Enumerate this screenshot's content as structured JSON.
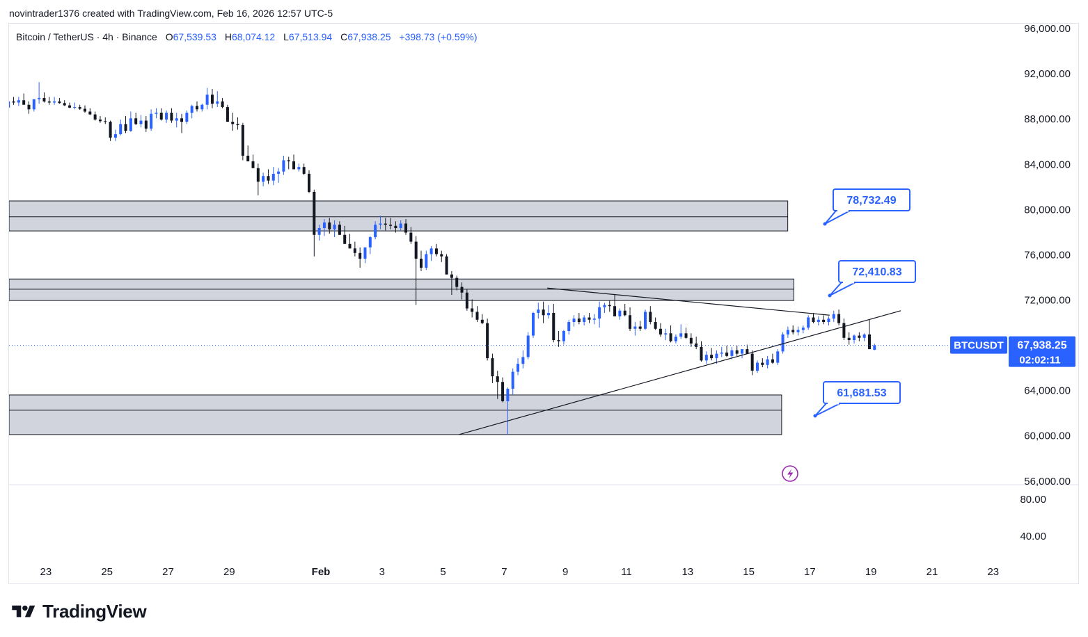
{
  "credit": "novintrader1376 created with TradingView.com, Feb 16, 2026 12:57 UTC-5",
  "legend": {
    "symbol": "Bitcoin / TetherUS · 4h · Binance",
    "open_label": "O",
    "open": "67,539.53",
    "high_label": "H",
    "high": "68,074.12",
    "low_label": "L",
    "low": "67,513.94",
    "close_label": "C",
    "close": "67,938.25",
    "change": "+398.73 (+0.59%)"
  },
  "colors": {
    "up": "#2962ff",
    "down": "#131722",
    "accent": "#2962ff",
    "zone": "#d1d4dc"
  },
  "brand": {
    "name": "TradingView",
    "icon": "tradingview-logo-icon"
  },
  "chart_data": {
    "type": "candlestick",
    "ylim": [
      56000,
      96000
    ],
    "price_ticks": [
      "96,000.00",
      "92,000.00",
      "88,000.00",
      "84,000.00",
      "80,000.00",
      "76,000.00",
      "72,000.00",
      "68,000.00",
      "64,000.00",
      "60,000.00",
      "56,000.00"
    ],
    "price_tick_values": [
      96000,
      92000,
      88000,
      84000,
      80000,
      76000,
      72000,
      68000,
      64000,
      60000,
      56000
    ],
    "x_ticks": [
      "23",
      "25",
      "27",
      "29",
      "Feb",
      "3",
      "5",
      "7",
      "9",
      "11",
      "13",
      "15",
      "17",
      "19",
      "21",
      "23"
    ],
    "x_tick_days": [
      -9,
      -7,
      -5,
      -3,
      0,
      2,
      4,
      6,
      8,
      10,
      12,
      14,
      16,
      18,
      20,
      22
    ],
    "indicator": {
      "ticks": [
        "80.00",
        "40.00"
      ],
      "tick_values": [
        80,
        40
      ],
      "ylim": [
        20,
        105
      ]
    },
    "current": {
      "symbol": "BTCUSDT",
      "price": "67,938.25",
      "countdown": "02:02:11",
      "value": 67938.25
    },
    "zones": [
      {
        "top": 80700,
        "mid": 79300,
        "bottom": 78050,
        "x_start": -10.7,
        "x_end": 15.3
      },
      {
        "top": 73800,
        "mid": 72900,
        "bottom": 71900,
        "x_start": -10.7,
        "x_end": 15.5
      },
      {
        "top": 63550,
        "mid": 62200,
        "bottom": 60050,
        "x_start": -10.7,
        "x_end": 15.1
      }
    ],
    "labels": [
      {
        "text": "78,732.49",
        "value": 78732.49
      },
      {
        "text": "72,410.83",
        "value": 72410.83
      },
      {
        "text": "61,681.53",
        "value": 61681.53
      }
    ],
    "trendlines": [
      {
        "x1": 7.43,
        "y1": 73000,
        "x2": 16.67,
        "y2": 70600
      },
      {
        "x1": 4.54,
        "y1": 60050,
        "x2": 19.0,
        "y2": 71000
      }
    ],
    "candles_t0": -10.7,
    "candles_step": 0.1667,
    "candles": [
      [
        89600,
        90150,
        89150,
        89700
      ],
      [
        89700,
        89950,
        89300,
        89450
      ],
      [
        89450,
        89800,
        88400,
        88950
      ],
      [
        88950,
        89800,
        88700,
        89500
      ],
      [
        89500,
        89900,
        89200,
        89400
      ],
      [
        89400,
        89900,
        89100,
        89600
      ],
      [
        89600,
        90200,
        89300,
        89200
      ],
      [
        89200,
        89500,
        88400,
        88800
      ],
      [
        88800,
        89650,
        88600,
        89700
      ],
      [
        89700,
        91200,
        89300,
        89800
      ],
      [
        89800,
        90300,
        89400,
        89500
      ],
      [
        89500,
        89900,
        89200,
        89400
      ],
      [
        89400,
        89900,
        89200,
        89500
      ],
      [
        89500,
        89800,
        89300,
        89350
      ],
      [
        89350,
        89600,
        89100,
        89150
      ],
      [
        89150,
        89400,
        88900,
        88950
      ],
      [
        88950,
        89400,
        88800,
        89000
      ],
      [
        89000,
        89200,
        88750,
        88850
      ],
      [
        88850,
        89150,
        88500,
        88600
      ],
      [
        88600,
        88900,
        88300,
        88350
      ],
      [
        88350,
        88600,
        87800,
        87900
      ],
      [
        87900,
        88200,
        87600,
        87750
      ],
      [
        87750,
        88100,
        87500,
        87700
      ],
      [
        87700,
        87800,
        86000,
        86300
      ],
      [
        86300,
        87000,
        86000,
        86600
      ],
      [
        86600,
        87900,
        86500,
        87500
      ],
      [
        87500,
        88200,
        86700,
        86900
      ],
      [
        86900,
        88600,
        86800,
        88000
      ],
      [
        88000,
        88500,
        87400,
        87500
      ],
      [
        87500,
        88300,
        87200,
        87800
      ],
      [
        87800,
        88200,
        86800,
        87100
      ],
      [
        87100,
        88800,
        86900,
        88400
      ],
      [
        88400,
        88900,
        88000,
        88500
      ],
      [
        88500,
        88900,
        87800,
        87900
      ],
      [
        87900,
        88700,
        87600,
        88500
      ],
      [
        88500,
        88900,
        87600,
        87800
      ],
      [
        87800,
        88500,
        87200,
        88000
      ],
      [
        88000,
        88400,
        86700,
        87700
      ],
      [
        87700,
        88700,
        87500,
        88500
      ],
      [
        88500,
        89200,
        88000,
        89100
      ],
      [
        89100,
        89500,
        88600,
        88800
      ],
      [
        88800,
        89300,
        88600,
        89200
      ],
      [
        89200,
        90700,
        88800,
        90100
      ],
      [
        90100,
        90600,
        88900,
        89300
      ],
      [
        89300,
        90400,
        89000,
        89500
      ],
      [
        89500,
        89800,
        88900,
        89000
      ],
      [
        89000,
        89200,
        87800,
        87700
      ],
      [
        87700,
        88500,
        86900,
        87500
      ],
      [
        87500,
        88100,
        87000,
        87400
      ],
      [
        87400,
        87600,
        84300,
        84700
      ],
      [
        84700,
        85600,
        84200,
        84200
      ],
      [
        84200,
        84800,
        83900,
        83600
      ],
      [
        83600,
        84000,
        81200,
        82400
      ],
      [
        82400,
        83200,
        82000,
        82900
      ],
      [
        82900,
        83500,
        82200,
        82500
      ],
      [
        82500,
        83700,
        82100,
        83100
      ],
      [
        83100,
        83600,
        82300,
        83300
      ],
      [
        83300,
        84700,
        83000,
        84300
      ],
      [
        84300,
        84600,
        83500,
        84200
      ],
      [
        84200,
        84800,
        83900,
        83500
      ],
      [
        83500,
        84000,
        83300,
        83700
      ],
      [
        83700,
        84000,
        83000,
        83100
      ],
      [
        83100,
        83400,
        81400,
        81500
      ],
      [
        81500,
        81700,
        75800,
        77700
      ],
      [
        77700,
        78600,
        77200,
        78300
      ],
      [
        78300,
        79100,
        77600,
        78800
      ],
      [
        78800,
        79200,
        77800,
        78200
      ],
      [
        78200,
        79000,
        77500,
        78600
      ],
      [
        78600,
        78900,
        77700,
        77700
      ],
      [
        77700,
        78500,
        76900,
        76900
      ],
      [
        76900,
        77800,
        76500,
        76500
      ],
      [
        76500,
        77100,
        75800,
        76100
      ],
      [
        76100,
        76600,
        74800,
        75600
      ],
      [
        75600,
        76300,
        75200,
        76600
      ],
      [
        76600,
        77600,
        76000,
        77500
      ],
      [
        77500,
        78900,
        77300,
        78600
      ],
      [
        78600,
        79400,
        78200,
        78700
      ],
      [
        78700,
        79200,
        78100,
        78600
      ],
      [
        78600,
        79200,
        78200,
        78500
      ],
      [
        78500,
        78900,
        77900,
        78300
      ],
      [
        78300,
        79000,
        78100,
        78700
      ],
      [
        78700,
        79100,
        77700,
        77900
      ],
      [
        77900,
        78400,
        76900,
        77100
      ],
      [
        77100,
        77600,
        71500,
        75600
      ],
      [
        75600,
        76300,
        74500,
        74800
      ],
      [
        74800,
        76300,
        74600,
        76000
      ],
      [
        76000,
        76700,
        75400,
        76500
      ],
      [
        76500,
        76900,
        75800,
        76000
      ],
      [
        76000,
        76300,
        75300,
        75800
      ],
      [
        75800,
        76000,
        74400,
        74200
      ],
      [
        74200,
        74500,
        72400,
        73900
      ],
      [
        73900,
        74100,
        72800,
        73100
      ],
      [
        73100,
        73500,
        72000,
        72600
      ],
      [
        72600,
        72900,
        71000,
        71200
      ],
      [
        71200,
        72000,
        70400,
        70900
      ],
      [
        70900,
        71400,
        70000,
        70200
      ],
      [
        70200,
        70700,
        69800,
        69900
      ],
      [
        69900,
        70300,
        66600,
        66800
      ],
      [
        66800,
        67200,
        64600,
        65200
      ],
      [
        65200,
        65700,
        63200,
        64700
      ],
      [
        64700,
        65100,
        62900,
        63000
      ],
      [
        63000,
        64200,
        60050,
        64100
      ],
      [
        64100,
        65900,
        63600,
        65600
      ],
      [
        65600,
        66800,
        65300,
        66300
      ],
      [
        66300,
        67500,
        65900,
        66900
      ],
      [
        66900,
        69100,
        66700,
        68800
      ],
      [
        68800,
        70900,
        68600,
        70800
      ],
      [
        70800,
        71700,
        70300,
        71100
      ],
      [
        71100,
        71800,
        69900,
        70600
      ],
      [
        70600,
        71500,
        70300,
        70800
      ],
      [
        70800,
        71600,
        68200,
        68400
      ],
      [
        68400,
        69200,
        67800,
        68300
      ],
      [
        68300,
        69300,
        68000,
        69200
      ],
      [
        69200,
        70200,
        68900,
        70000
      ],
      [
        70000,
        70600,
        69600,
        70300
      ],
      [
        70300,
        70800,
        69800,
        70000
      ],
      [
        70000,
        70600,
        69700,
        70400
      ],
      [
        70400,
        70800,
        69900,
        70200
      ],
      [
        70200,
        70700,
        69800,
        70300
      ],
      [
        70300,
        71800,
        69500,
        71300
      ],
      [
        71300,
        71700,
        70800,
        71500
      ],
      [
        71500,
        71900,
        70900,
        71400
      ],
      [
        71400,
        72400,
        70800,
        70500
      ],
      [
        70500,
        71200,
        70200,
        71000
      ],
      [
        71000,
        71600,
        70500,
        70600
      ],
      [
        70600,
        71300,
        69200,
        69400
      ],
      [
        69400,
        70000,
        68800,
        69600
      ],
      [
        69600,
        70100,
        69200,
        69400
      ],
      [
        69400,
        71100,
        69300,
        70900
      ],
      [
        70900,
        71400,
        69800,
        70000
      ],
      [
        70000,
        70400,
        69300,
        69400
      ],
      [
        69400,
        69900,
        68700,
        68900
      ],
      [
        68900,
        69400,
        68400,
        69000
      ],
      [
        69000,
        69700,
        68200,
        68300
      ],
      [
        68300,
        68900,
        68100,
        68700
      ],
      [
        68700,
        69800,
        68500,
        69000
      ],
      [
        69000,
        69500,
        68500,
        68600
      ],
      [
        68600,
        69000,
        67800,
        68100
      ],
      [
        68100,
        68700,
        67600,
        67800
      ],
      [
        67800,
        68300,
        66500,
        66600
      ],
      [
        66600,
        67400,
        66300,
        67100
      ],
      [
        67100,
        67700,
        66600,
        66800
      ],
      [
        66800,
        67500,
        66300,
        67200
      ],
      [
        67200,
        67800,
        66900,
        67300
      ],
      [
        67300,
        67900,
        66900,
        67000
      ],
      [
        67000,
        67800,
        66700,
        67500
      ],
      [
        67500,
        67900,
        67000,
        67200
      ],
      [
        67200,
        67600,
        66800,
        67600
      ],
      [
        67600,
        68000,
        67300,
        67200
      ],
      [
        67200,
        67500,
        65300,
        65700
      ],
      [
        65700,
        66600,
        65500,
        66400
      ],
      [
        66400,
        66800,
        66000,
        66200
      ],
      [
        66200,
        67000,
        65900,
        66700
      ],
      [
        66700,
        67200,
        66300,
        66400
      ],
      [
        66400,
        67600,
        66200,
        67400
      ],
      [
        67400,
        69100,
        67200,
        68900
      ],
      [
        68900,
        69600,
        68600,
        69300
      ],
      [
        69300,
        69700,
        68900,
        69100
      ],
      [
        69100,
        69600,
        68800,
        69300
      ],
      [
        69300,
        69700,
        69000,
        69500
      ],
      [
        69500,
        70600,
        69300,
        70400
      ],
      [
        70400,
        70800,
        69900,
        70000
      ],
      [
        70000,
        70500,
        69700,
        70200
      ],
      [
        70200,
        70600,
        69800,
        70000
      ],
      [
        70000,
        70500,
        69700,
        70300
      ],
      [
        70300,
        71000,
        70000,
        70700
      ],
      [
        70700,
        71100,
        69700,
        69900
      ],
      [
        69900,
        70300,
        68400,
        68600
      ],
      [
        68600,
        69100,
        68000,
        68400
      ],
      [
        68400,
        68900,
        68100,
        68800
      ],
      [
        68800,
        69100,
        68300,
        68600
      ],
      [
        68600,
        69000,
        68300,
        68900
      ],
      [
        68900,
        70200,
        67600,
        67600
      ],
      [
        67538,
        68074,
        67514,
        67938
      ]
    ]
  }
}
